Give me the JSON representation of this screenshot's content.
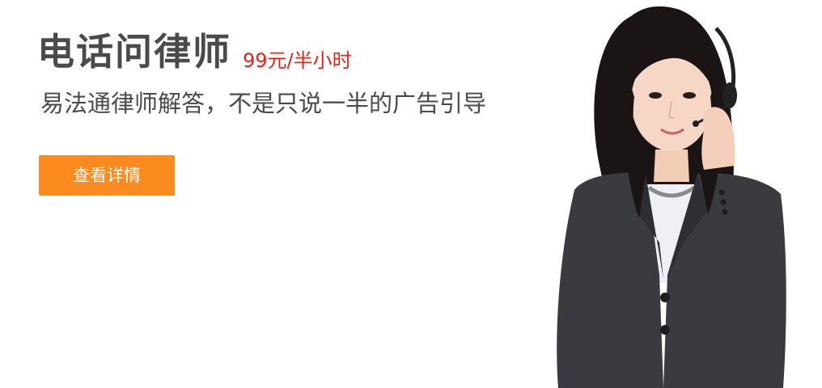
{
  "banner": {
    "title": "电话问律师",
    "price": "99元/半小时",
    "subtitle": "易法通律师解答，不是只说一半的广告引导",
    "cta_label": "查看详情"
  },
  "colors": {
    "title": "#4a4a4a",
    "price": "#e3231a",
    "cta_background": "#fb8a1f",
    "cta_text": "#ffffff"
  }
}
